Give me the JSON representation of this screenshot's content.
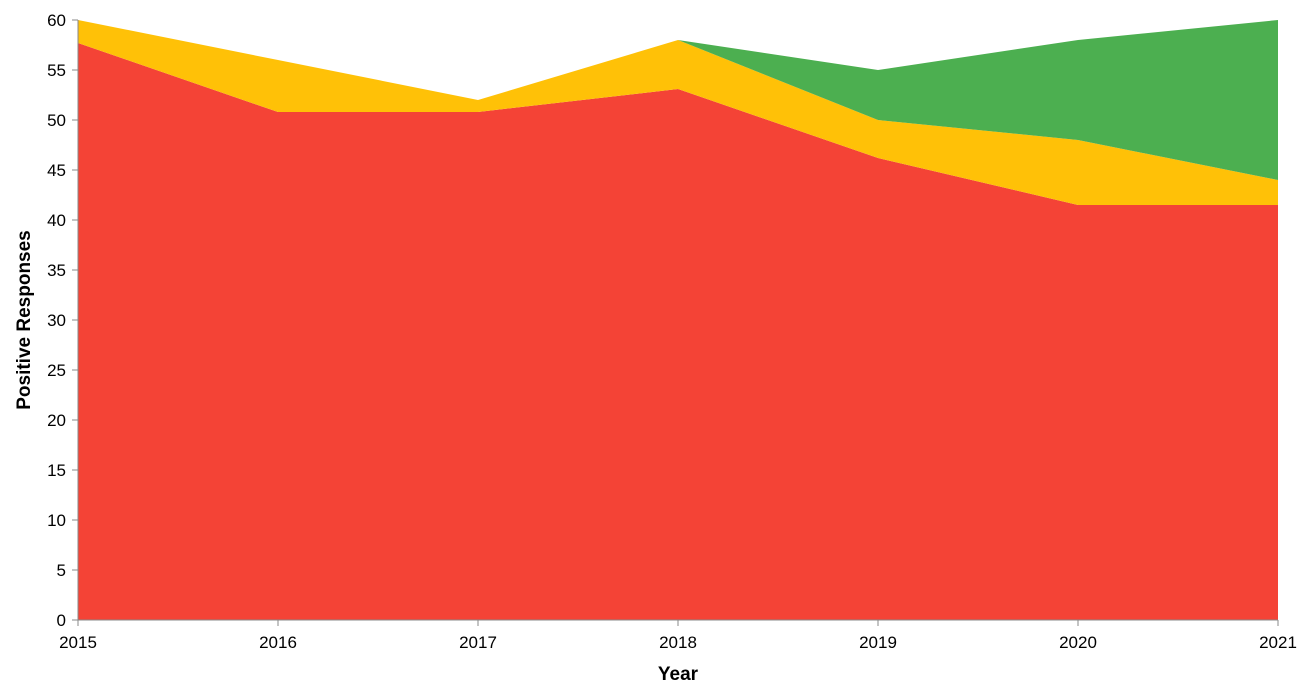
{
  "chart_data": {
    "type": "area",
    "stacked": true,
    "title": "",
    "xlabel": "Year",
    "ylabel": "Positive Responses",
    "x": [
      2015,
      2016,
      2017,
      2018,
      2019,
      2020,
      2021
    ],
    "x_tick_labels": [
      "2015",
      "2016",
      "2017",
      "2018",
      "2019",
      "2020",
      "2021"
    ],
    "y_ticks": [
      0,
      5,
      10,
      15,
      20,
      25,
      30,
      35,
      40,
      45,
      50,
      55,
      60
    ],
    "ylim": [
      0,
      60
    ],
    "grid": false,
    "legend": "none",
    "series": [
      {
        "color": "#f44336",
        "values": [
          57.7,
          50.8,
          50.8,
          53.1,
          46.2,
          41.5,
          41.5
        ]
      },
      {
        "color": "#ffc107",
        "values": [
          2.3,
          5.2,
          1.2,
          4.9,
          3.8,
          6.5,
          2.5
        ]
      },
      {
        "color": "#4caf50",
        "values": [
          0,
          0,
          0,
          0,
          5.0,
          10.0,
          16.0
        ]
      }
    ]
  }
}
